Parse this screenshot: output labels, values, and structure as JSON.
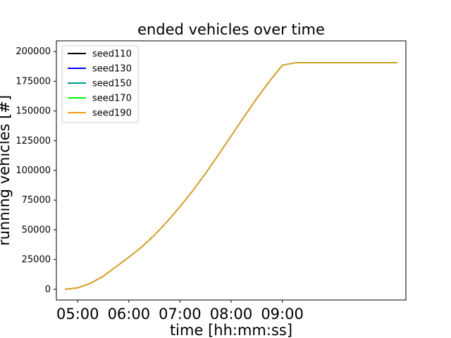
{
  "chart_data": {
    "type": "line",
    "title": "ended vehicles over time",
    "xlabel": "time [hh:mm:ss]",
    "ylabel": "running vehicles [#]",
    "x_tick_labels": [
      "05:00",
      "06:00",
      "07:00",
      "08:00",
      "09:00"
    ],
    "x_ticks": [
      "05:00",
      "06:00",
      "07:00",
      "08:00",
      "09:00"
    ],
    "xlim": [
      "04:35",
      "11:25"
    ],
    "y_ticks": [
      0,
      25000,
      50000,
      75000,
      100000,
      125000,
      150000,
      175000,
      200000
    ],
    "ylim": [
      -9000,
      209000
    ],
    "x": [
      "04:45",
      "05:00",
      "05:15",
      "05:30",
      "05:45",
      "06:00",
      "06:15",
      "06:30",
      "06:45",
      "07:00",
      "07:15",
      "07:30",
      "07:45",
      "08:00",
      "08:15",
      "08:30",
      "08:45",
      "09:00",
      "09:15",
      "09:30",
      "10:00",
      "10:30",
      "11:00",
      "11:15"
    ],
    "series": [
      {
        "name": "seed110",
        "color": "#000000",
        "values": [
          0,
          1200,
          5000,
          11000,
          19000,
          27000,
          35500,
          45500,
          57000,
          69500,
          83000,
          97500,
          113000,
          129000,
          145000,
          160500,
          175000,
          188500,
          190500,
          190700,
          190700,
          190700,
          190700,
          190700
        ]
      },
      {
        "name": "seed130",
        "color": "#0000ff",
        "values": [
          0,
          1200,
          5000,
          11000,
          19000,
          27000,
          35500,
          45500,
          57000,
          69500,
          83000,
          97500,
          113000,
          129000,
          145000,
          160500,
          175000,
          188500,
          190500,
          190700,
          190700,
          190700,
          190700,
          190700
        ]
      },
      {
        "name": "seed150",
        "color": "#009e8f",
        "values": [
          0,
          1200,
          5000,
          11000,
          19000,
          27000,
          35500,
          45500,
          57000,
          69500,
          83000,
          97500,
          113000,
          129000,
          145000,
          160500,
          175000,
          188500,
          190500,
          190700,
          190700,
          190700,
          190700,
          190700
        ]
      },
      {
        "name": "seed170",
        "color": "#00ff00",
        "values": [
          0,
          1200,
          5000,
          11000,
          19000,
          27000,
          35500,
          45500,
          57000,
          69500,
          83000,
          97500,
          113000,
          129000,
          145000,
          160500,
          175000,
          188500,
          190500,
          190700,
          190700,
          190700,
          190700,
          190700
        ]
      },
      {
        "name": "seed190",
        "color": "#f59a16",
        "values": [
          0,
          1200,
          5000,
          11000,
          19000,
          27000,
          35500,
          45500,
          57000,
          69500,
          83000,
          97500,
          113000,
          129000,
          145000,
          160500,
          175000,
          188500,
          190500,
          190700,
          190700,
          190700,
          190700,
          190700
        ]
      }
    ],
    "legend_position": "upper-left",
    "grid": false
  }
}
